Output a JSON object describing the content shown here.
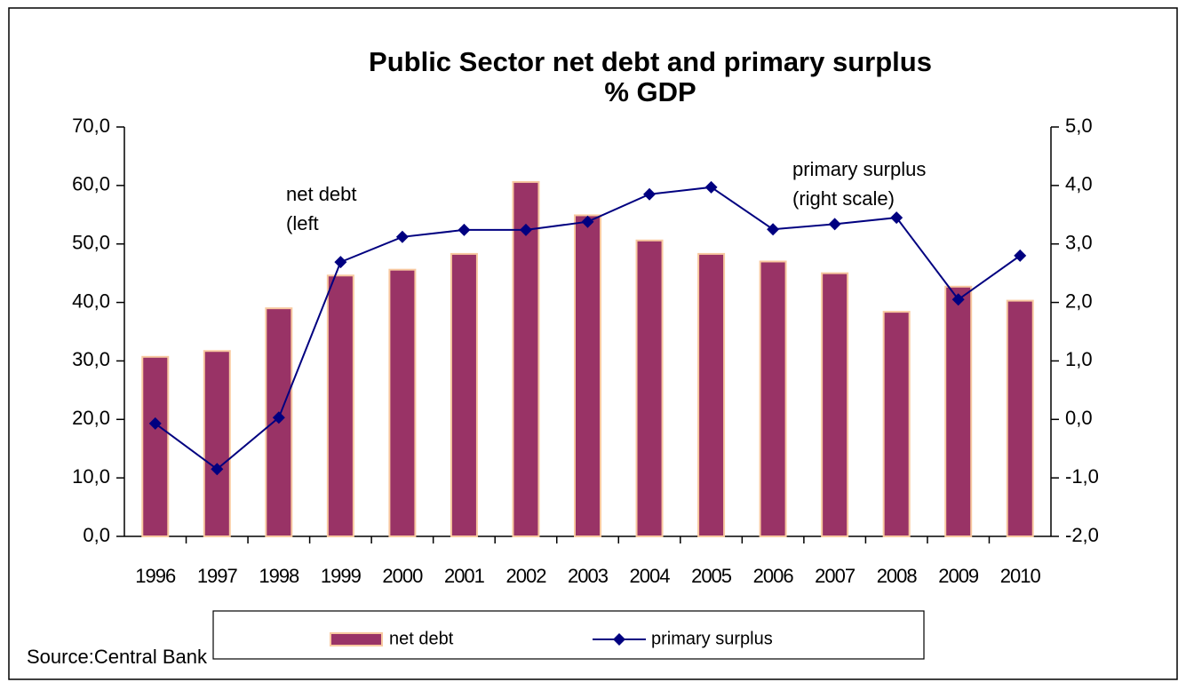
{
  "chart_data": {
    "type": "bar-line",
    "title": "Public Sector net debt and primary surplus",
    "subtitle": "% GDP",
    "categories": [
      "1996",
      "1997",
      "1998",
      "1999",
      "2000",
      "2001",
      "2002",
      "2003",
      "2004",
      "2005",
      "2006",
      "2007",
      "2008",
      "2009",
      "2010"
    ],
    "series": [
      {
        "name": "net debt",
        "type": "bar",
        "color": "#993366",
        "values": [
          30.7,
          31.7,
          39.0,
          44.6,
          45.6,
          48.3,
          60.6,
          54.9,
          50.6,
          48.3,
          47.0,
          45.0,
          38.4,
          42.7,
          40.3
        ]
      },
      {
        "name": "primary surplus",
        "type": "line",
        "axis": "y2",
        "color": "#000080",
        "values": [
          -0.07,
          -0.85,
          0.03,
          2.69,
          3.12,
          3.24,
          3.24,
          3.38,
          3.85,
          3.97,
          3.25,
          3.34,
          3.45,
          2.05,
          2.8
        ]
      }
    ],
    "ylim": [
      0,
      70
    ],
    "yticks": [
      {
        "value": 0,
        "label": "0,0"
      },
      {
        "value": 10,
        "label": "10,0"
      },
      {
        "value": 20,
        "label": "20,0"
      },
      {
        "value": 30,
        "label": "30,0"
      },
      {
        "value": 40,
        "label": "40,0"
      },
      {
        "value": 50,
        "label": "50,0"
      },
      {
        "value": 60,
        "label": "60,0"
      },
      {
        "value": 70,
        "label": "70,0"
      }
    ],
    "y2lim": [
      -2,
      5
    ],
    "y2ticks": [
      {
        "value": -2,
        "label": "-2,0"
      },
      {
        "value": -1,
        "label": "-1,0"
      },
      {
        "value": 0,
        "label": "0,0"
      },
      {
        "value": 1,
        "label": "1,0"
      },
      {
        "value": 2,
        "label": "2,0"
      },
      {
        "value": 3,
        "label": "3,0"
      },
      {
        "value": 4,
        "label": "4,0"
      },
      {
        "value": 5,
        "label": "5,0"
      }
    ],
    "annotations": [
      {
        "lines": [
          "net debt",
          "(left"
        ]
      },
      {
        "lines": [
          "primary surplus",
          "(right scale)"
        ]
      }
    ],
    "source": "Source:Central Bank",
    "legend": "bottom"
  }
}
